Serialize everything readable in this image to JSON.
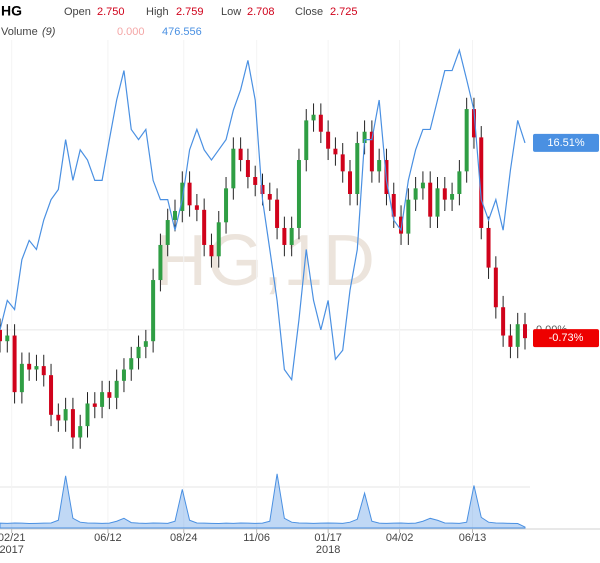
{
  "chart_data": {
    "type": "candlestick",
    "symbol": "HG",
    "watermark": "HG,1D",
    "header": {
      "open_label": "Open",
      "open": "2.750",
      "high_label": "High",
      "high": "2.759",
      "low_label": "Low",
      "low": "2.708",
      "close_label": "Close",
      "close": "2.725",
      "volume_label": "Volume",
      "volume_param": "(9)",
      "volume_ma": "0.000",
      "volume_last": "476.556"
    },
    "x": [
      0,
      5,
      10,
      15,
      20,
      25,
      30,
      35,
      40,
      45,
      50,
      55,
      60,
      65,
      70,
      75,
      80,
      85,
      90,
      95,
      100,
      105,
      110,
      115,
      120,
      125,
      130,
      135,
      140,
      145,
      150,
      155,
      160,
      165,
      170,
      175,
      180,
      185,
      190,
      195,
      200,
      205,
      210,
      215,
      220,
      225,
      230,
      235,
      240,
      245,
      250,
      255,
      260,
      265,
      270,
      275,
      280,
      285,
      290,
      295,
      300,
      305,
      310,
      315,
      320,
      325,
      330,
      335,
      340,
      345,
      350,
      355,
      360
    ],
    "open": [
      0.0,
      -1.0,
      -0.5,
      -5.5,
      -3.0,
      -3.5,
      -3.2,
      -4.0,
      -7.5,
      -8.0,
      -7.0,
      -9.5,
      -8.5,
      -6.5,
      -6.8,
      -5.5,
      -6.0,
      -4.5,
      -3.5,
      -2.5,
      -1.5,
      -1.0,
      4.4,
      7.5,
      9.7,
      10.5,
      13.0,
      11.0,
      10.6,
      7.5,
      6.5,
      9.5,
      12.5,
      16.0,
      15.0,
      13.5,
      12.8,
      12.0,
      11.5,
      9.0,
      7.5,
      9.0,
      15.0,
      18.5,
      19.0,
      17.5,
      16.0,
      15.5,
      14.0,
      12.0,
      16.5,
      17.5,
      14.0,
      15.0,
      12.0,
      10.0,
      8.5,
      11.5,
      12.5,
      13.0,
      10.0,
      12.5,
      11.5,
      12.0,
      14.0,
      19.5,
      17.0,
      9.0,
      5.5,
      2.0,
      -0.5,
      -1.5,
      0.5
    ],
    "high": [
      1.0,
      0.5,
      0.5,
      -2.0,
      -2.0,
      -2.2,
      -2.2,
      -3.0,
      -6.5,
      -6.0,
      -6.0,
      -7.5,
      -5.5,
      -5.5,
      -4.5,
      -4.5,
      -3.5,
      -2.5,
      -1.5,
      -0.5,
      0.0,
      5.4,
      8.5,
      10.7,
      11.5,
      14.0,
      14.0,
      12.0,
      11.6,
      8.5,
      10.5,
      13.5,
      17.0,
      17.0,
      16.0,
      14.5,
      13.8,
      13.0,
      12.5,
      10.0,
      10.0,
      16.0,
      19.5,
      20.0,
      20.0,
      18.5,
      17.0,
      16.5,
      15.0,
      17.5,
      18.5,
      18.5,
      16.0,
      16.0,
      13.0,
      11.0,
      12.5,
      13.5,
      14.0,
      14.0,
      13.5,
      13.5,
      13.0,
      15.0,
      20.5,
      20.5,
      18.0,
      10.0,
      6.5,
      3.0,
      0.5,
      1.5,
      1.5
    ],
    "low": [
      -2.0,
      -2.0,
      -6.5,
      -6.5,
      -4.5,
      -4.5,
      -5.0,
      -8.5,
      -9.0,
      -9.0,
      -10.5,
      -10.5,
      -9.5,
      -7.8,
      -7.8,
      -7.0,
      -7.0,
      -5.5,
      -4.5,
      -3.5,
      -2.5,
      -2.0,
      3.4,
      6.5,
      8.7,
      9.5,
      10.0,
      9.6,
      6.5,
      5.5,
      5.5,
      8.5,
      11.5,
      14.0,
      12.5,
      11.8,
      11.0,
      10.5,
      8.0,
      6.5,
      6.5,
      8.0,
      14.0,
      17.5,
      16.5,
      15.0,
      14.5,
      13.0,
      11.0,
      11.0,
      15.5,
      13.0,
      13.0,
      11.0,
      9.0,
      7.5,
      7.5,
      10.5,
      11.5,
      9.0,
      9.0,
      10.5,
      10.5,
      11.0,
      13.0,
      16.0,
      8.0,
      4.5,
      1.0,
      -1.5,
      -2.5,
      -2.5,
      -1.73
    ],
    "close": [
      -1.0,
      -0.5,
      -5.5,
      -3.0,
      -3.5,
      -3.2,
      -4.0,
      -7.5,
      -8.0,
      -7.0,
      -9.5,
      -8.5,
      -6.5,
      -6.8,
      -5.5,
      -6.0,
      -4.5,
      -3.5,
      -2.5,
      -1.5,
      -1.0,
      4.4,
      7.5,
      9.7,
      10.5,
      13.0,
      11.0,
      10.6,
      7.5,
      6.5,
      9.5,
      12.5,
      16.0,
      15.0,
      13.5,
      12.8,
      12.0,
      11.5,
      9.0,
      7.5,
      9.0,
      15.0,
      18.5,
      19.0,
      17.5,
      16.0,
      15.5,
      14.0,
      12.0,
      16.5,
      17.5,
      14.0,
      15.0,
      12.0,
      10.0,
      8.5,
      11.5,
      12.5,
      13.0,
      10.0,
      12.5,
      11.5,
      12.0,
      14.0,
      19.5,
      17.0,
      9.0,
      5.5,
      2.0,
      -0.5,
      -1.5,
      0.5,
      -0.73
    ],
    "up_color": "#2f9e44",
    "down_color": "#d0021b",
    "compare": {
      "color": "#4a90e2",
      "values": [
        0,
        2.6,
        1.8,
        6.2,
        7.9,
        7.1,
        9.7,
        11.5,
        12.4,
        16.8,
        13.2,
        15.9,
        15.0,
        13.2,
        13.2,
        16.8,
        20.3,
        22.9,
        17.7,
        16.8,
        17.7,
        13.2,
        11.5,
        11.5,
        8.8,
        11.5,
        15.9,
        17.7,
        15.9,
        15.0,
        15.9,
        16.8,
        19.4,
        21.2,
        23.8,
        20.3,
        11.5,
        7.1,
        2.6,
        -3.5,
        -4.4,
        0.9,
        7.1,
        2.6,
        0,
        2.6,
        -2.6,
        -1.8,
        3.5,
        7.1,
        16.8,
        16.8,
        20.3,
        13.2,
        9.7,
        8.8,
        13.2,
        15.9,
        17.7,
        17.7,
        20.3,
        22.9,
        22.9,
        24.7,
        22.1,
        19.4,
        11.5,
        9.7,
        11.5,
        8.8,
        14.1,
        18.5,
        16.51
      ]
    },
    "volume": {
      "color": "#4a90e2",
      "values": [
        2500,
        2400,
        2600,
        2500,
        2300,
        2400,
        2500,
        2600,
        4000,
        27000,
        5000,
        3000,
        2600,
        2500,
        2400,
        2500,
        3500,
        5000,
        2800,
        2500,
        2400,
        2600,
        2500,
        2400,
        3500,
        20000,
        4000,
        2600,
        2500,
        2400,
        2300,
        2500,
        2400,
        2600,
        2500,
        2400,
        2500,
        3500,
        28000,
        5000,
        3000,
        2600,
        2500,
        2400,
        2500,
        2600,
        2500,
        2400,
        3000,
        4500,
        18000,
        3500,
        2500,
        2400,
        2500,
        2600,
        2400,
        2500,
        3500,
        5000,
        4000,
        2600,
        2500,
        2400,
        3000,
        22000,
        5500,
        3000,
        2600,
        2500,
        2400,
        2300,
        476.556
      ],
      "ylim": [
        0,
        30000
      ]
    },
    "xlim": [
      0,
      360
    ],
    "ylim": [
      -13.7,
      25.6
    ],
    "xticks": [
      {
        "value": 8,
        "label": "02/21"
      },
      {
        "value": 74,
        "label": "06/12"
      },
      {
        "value": 126,
        "label": "08/24"
      },
      {
        "value": 176,
        "label": "11/06"
      },
      {
        "value": 225,
        "label": "01/17"
      },
      {
        "value": 274,
        "label": "04/02"
      },
      {
        "value": 324,
        "label": "06/13"
      }
    ],
    "year_labels": [
      {
        "value": 8,
        "label": "2017"
      },
      {
        "value": 225,
        "label": "2018"
      }
    ],
    "yticks": [
      {
        "value": 0,
        "label": "0.00%"
      }
    ],
    "last_labels": [
      {
        "value": 16.51,
        "label": "16.51%",
        "color": "#4a90e2"
      },
      {
        "value": -0.73,
        "label": "-0.73%",
        "color": "#ee0000"
      }
    ],
    "grid": true
  }
}
